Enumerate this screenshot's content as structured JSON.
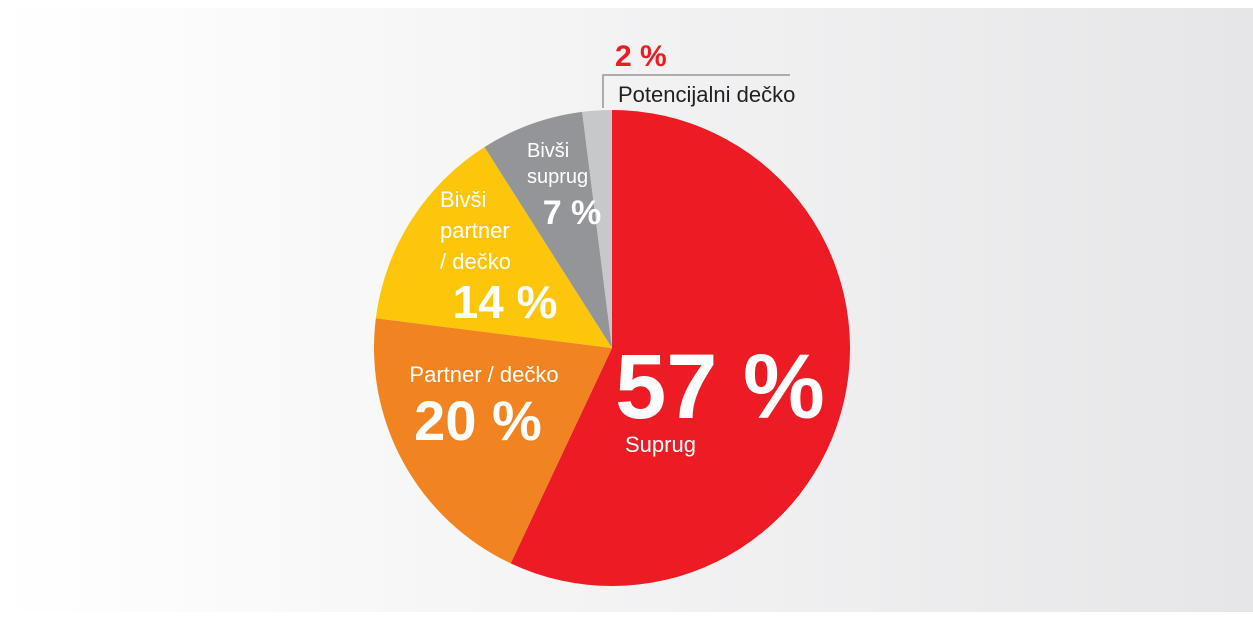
{
  "chart_data": {
    "type": "pie",
    "categories": [
      "Suprug",
      "Partner / dečko",
      "Bivši partner / dečko",
      "Bivši suprug",
      "Potencijalni dečko"
    ],
    "values": [
      57,
      20,
      14,
      7,
      2
    ],
    "value_labels": [
      "57 %",
      "20 %",
      "14 %",
      "7 %",
      "2 %"
    ],
    "colors": [
      "#ed1c24",
      "#f18421",
      "#fdc60a",
      "#939598",
      "#c7c8ca"
    ]
  }
}
